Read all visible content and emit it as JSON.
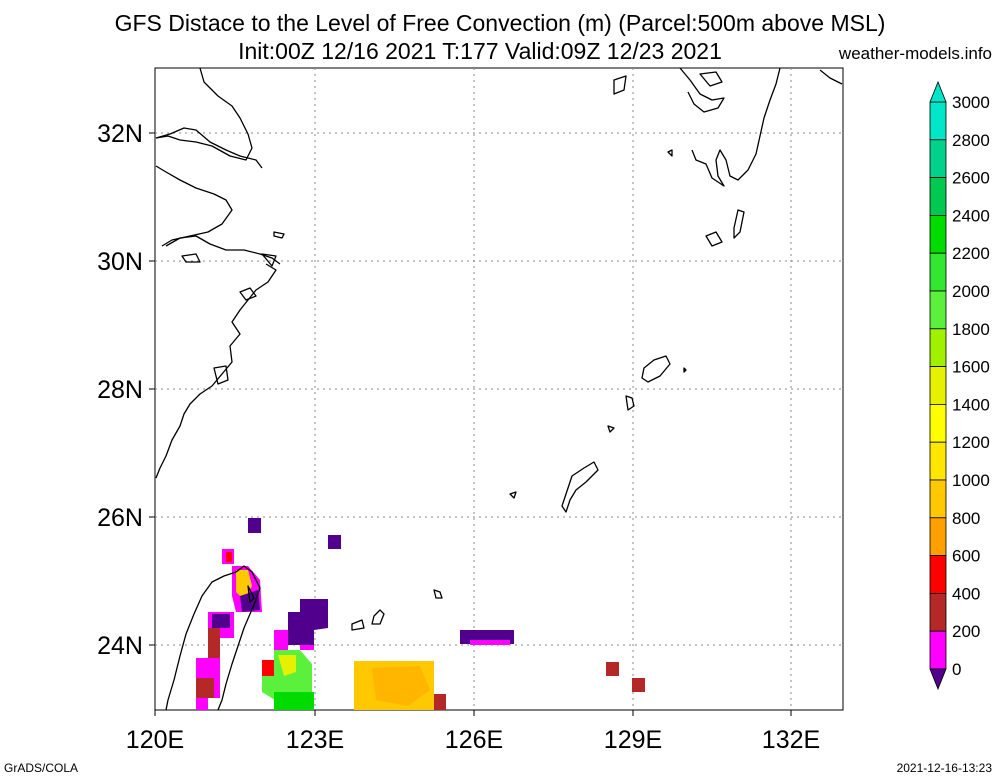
{
  "title_line1": "GFS Distace to the Level of Free Convection (m) (Parcel:500m above MSL)",
  "title_line2": "Init:00Z 12/16 2021 T:177 Valid:09Z 12/23 2021",
  "site": "weather-models.info",
  "footer_left": "GrADS/COLA",
  "footer_right": "2021-12-16-13:23",
  "axes": {
    "lon_labels": [
      "120E",
      "123E",
      "126E",
      "129E",
      "132E"
    ],
    "lat_labels": [
      "32N",
      "30N",
      "28N",
      "26N",
      "24N"
    ],
    "lon_range": [
      120,
      133
    ],
    "lat_range": [
      23,
      33
    ]
  },
  "colorbar": {
    "labels": [
      "3000",
      "2800",
      "2600",
      "2400",
      "2200",
      "2000",
      "1800",
      "1600",
      "1400",
      "1200",
      "1000",
      "800",
      "600",
      "400",
      "200",
      "0"
    ],
    "colors": [
      "#00e6c8",
      "#00d28c",
      "#00c850",
      "#00dc00",
      "#32e632",
      "#5af03c",
      "#a0f000",
      "#e6f000",
      "#ffff00",
      "#ffe600",
      "#ffc800",
      "#ffa000",
      "#ff0000",
      "#b42828",
      "#ff00ff",
      "#50008c"
    ]
  }
}
